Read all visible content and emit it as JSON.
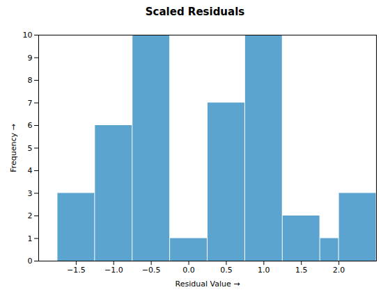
{
  "chart_data": {
    "type": "histogram",
    "title": "Scaled Residuals",
    "xlabel": "Residual Value",
    "ylabel": "Frequency",
    "bins": [
      -1.75,
      -1.25,
      -0.75,
      -0.25,
      0.25,
      0.75,
      1.25,
      1.75,
      2.0,
      2.5
    ],
    "values": [
      3,
      6,
      10,
      1,
      7,
      10,
      2,
      1,
      3
    ],
    "color": "#5BA4CF",
    "xlim": [
      -2.0,
      2.5
    ],
    "xticks": [
      {
        "value": -1.5,
        "label": "−1.5"
      },
      {
        "value": -1.0,
        "label": "−1.0"
      },
      {
        "value": -0.5,
        "label": "−0.5"
      },
      {
        "value": 0.0,
        "label": "0.0"
      },
      {
        "value": 0.5,
        "label": "0.5"
      },
      {
        "value": 1.0,
        "label": "1.0"
      },
      {
        "value": 1.5,
        "label": "1.5"
      },
      {
        "value": 2.0,
        "label": "2.0"
      }
    ],
    "ylim": [
      0,
      10
    ],
    "yticks": [
      0,
      1,
      2,
      3,
      4,
      5,
      6,
      7,
      8,
      9,
      10
    ],
    "grid": false
  }
}
